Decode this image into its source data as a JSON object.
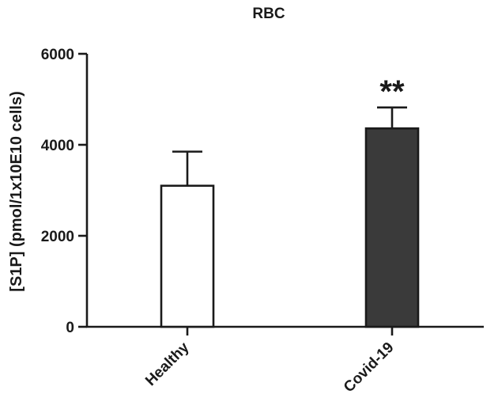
{
  "chart_data": {
    "type": "bar",
    "title": "RBC",
    "xlabel": "",
    "ylabel": "[S1P] (pmol/1x10E10 cells)",
    "categories": [
      "Healthy",
      "Covid-19"
    ],
    "values": [
      3100,
      4360
    ],
    "error": [
      750,
      460
    ],
    "annotations": [
      "",
      "**"
    ],
    "bar_colors": [
      "#ffffff",
      "#3a3a3a"
    ],
    "ylim": [
      0,
      6000
    ],
    "yticks": [
      0,
      2000,
      4000,
      6000
    ],
    "ytick_labels": [
      "0",
      "2000",
      "4000",
      "6000"
    ],
    "grid": false,
    "legend": "none"
  }
}
